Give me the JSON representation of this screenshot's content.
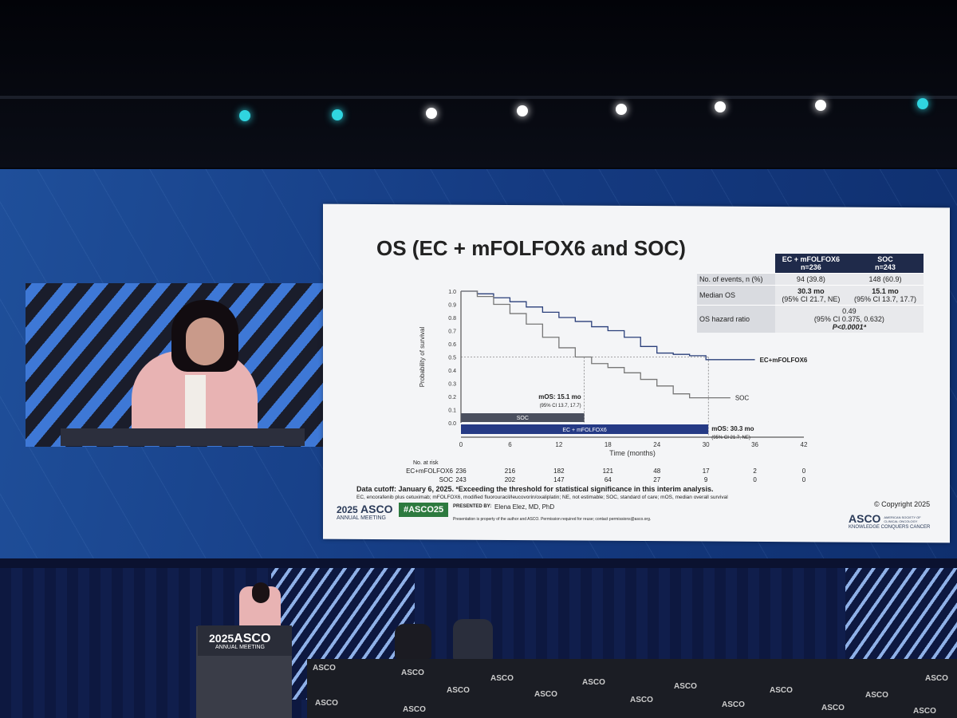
{
  "slide": {
    "title": "OS (EC + mFOLFOX6 and SOC)",
    "table": {
      "header": [
        "",
        "EC + mFOLFOX6\nn=236",
        "SOC\nn=243"
      ],
      "h1a": "EC + mFOLFOX6",
      "h1b": "n=236",
      "h2a": "SOC",
      "h2b": "n=243",
      "r1": {
        "label": "No. of events, n (%)",
        "a": "94 (39.8)",
        "b": "148 (60.9)"
      },
      "r2": {
        "label": "Median OS",
        "a1": "30.3 mo",
        "a2": "(95% CI 21.7, NE)",
        "b1": "15.1 mo",
        "b2": "(95% CI 13.7, 17.7)"
      },
      "r3": {
        "label": "OS hazard ratio",
        "v1": "0.49",
        "v2": "(95% CI 0.375, 0.632)",
        "v3": "P<0.0001ª"
      }
    },
    "footnote1": "Data cutoff: January 6, 2025. ªExceeding the threshold for statistical significance in this interim analysis.",
    "footnote2": "EC, encorafenib plus cetuximab; mFOLFOX6, modified fluorouracil/leucovorin/oxaliplatin; NE, not estimable; SOC, standard of care; mOS, median overall survival",
    "copyright": "© Copyright 2025",
    "presented_by_label": "PRESENTED BY:",
    "presenter": "Elena Elez, MD, PhD",
    "permission": "Presentation is property of the author and ASCO. Permission required for reuse; contact permissions@asco.org.",
    "meeting_year": "2025",
    "meeting_org": "ASCO",
    "meeting_name": "ANNUAL MEETING",
    "hashtag": "#ASCO25",
    "asco_right": "ASCO",
    "asco_right_sub1": "AMERICAN SOCIETY OF",
    "asco_right_sub2": "CLINICAL ONCOLOGY",
    "asco_tagline": "KNOWLEDGE CONQUERS CANCER"
  },
  "chart_data": {
    "type": "line",
    "xlabel": "Time (months)",
    "ylabel": "Probability of survival",
    "xlim": [
      0,
      42
    ],
    "ylim": [
      0,
      1.0
    ],
    "x_ticks": [
      0,
      6,
      12,
      18,
      24,
      30,
      36,
      42
    ],
    "y_ticks": [
      "0.0",
      "0.1",
      "0.2",
      "0.3",
      "0.4",
      "0.5",
      "0.6",
      "0.7",
      "0.8",
      "0.9",
      "1.0"
    ],
    "series": [
      {
        "name": "EC+mFOLFOX6",
        "color": "#2a3f7a",
        "x": [
          0,
          2,
          4,
          6,
          8,
          10,
          12,
          14,
          16,
          18,
          20,
          22,
          24,
          26,
          28,
          30,
          33,
          36
        ],
        "y": [
          1.0,
          0.98,
          0.95,
          0.92,
          0.88,
          0.84,
          0.8,
          0.77,
          0.73,
          0.7,
          0.65,
          0.58,
          0.53,
          0.52,
          0.51,
          0.48,
          0.48,
          0.48
        ]
      },
      {
        "name": "SOC",
        "color": "#777777",
        "x": [
          0,
          2,
          4,
          6,
          8,
          10,
          12,
          14,
          16,
          18,
          20,
          22,
          24,
          26,
          28,
          30,
          33
        ],
        "y": [
          1.0,
          0.96,
          0.9,
          0.83,
          0.75,
          0.65,
          0.57,
          0.5,
          0.45,
          0.42,
          0.38,
          0.33,
          0.28,
          0.22,
          0.19,
          0.19,
          0.19
        ]
      }
    ],
    "ref_line_y": 0.5,
    "annotations": {
      "soc_mos": "mOS: 15.1 mo",
      "soc_ci": "(95% CI 13.7, 17.7)",
      "ec_mos": "mOS: 30.3 mo",
      "ec_ci": "(95% CI 21.7, NE)",
      "soc_bar": "SOC",
      "ec_bar": "EC + mFOLFOX6"
    },
    "soc_median": 15.1,
    "ec_median": 30.3,
    "risk_table": {
      "title": "No. at risk",
      "rows": [
        {
          "label": "EC+mFOLFOX6",
          "values": [
            "236",
            "216",
            "182",
            "121",
            "48",
            "17",
            "2",
            "0"
          ]
        },
        {
          "label": "SOC",
          "values": [
            "243",
            "202",
            "147",
            "64",
            "27",
            "9",
            "0",
            "0"
          ]
        }
      ]
    }
  },
  "stage": {
    "podium_year": "2025",
    "podium_org": "ASCO",
    "podium_sub": "ANNUAL MEETING",
    "table_brand": "ASCO"
  }
}
